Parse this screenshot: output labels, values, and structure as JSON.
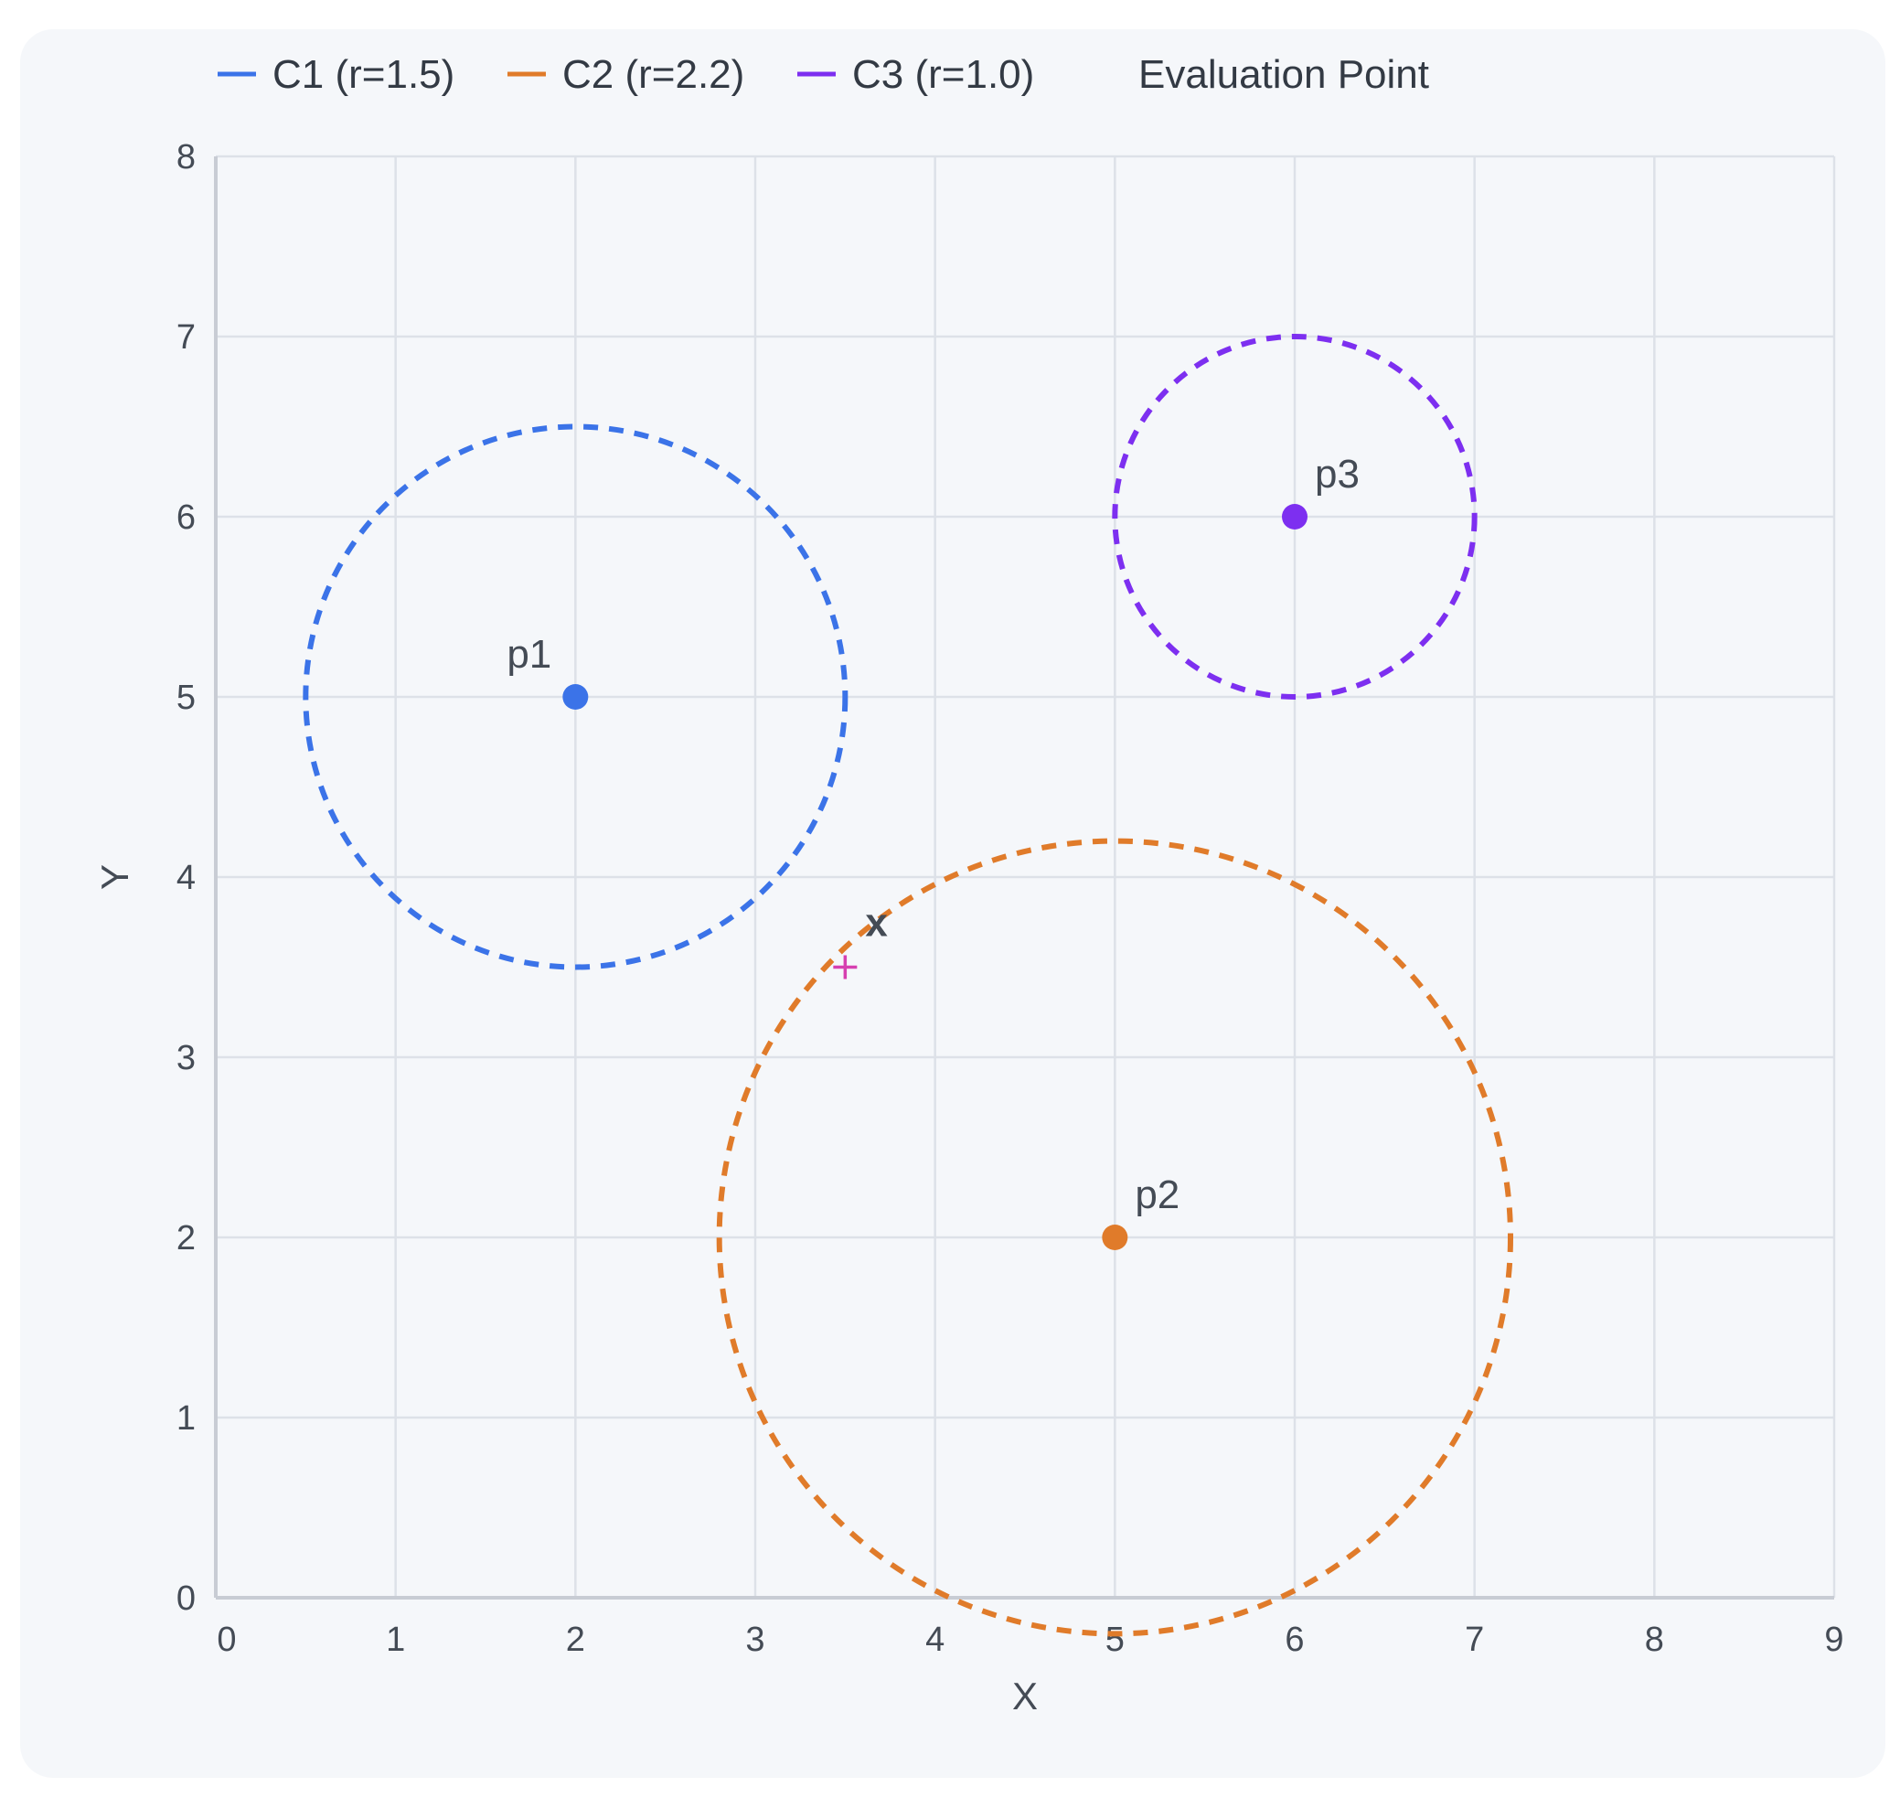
{
  "chart_data": {
    "type": "scatter",
    "xlabel": "X",
    "ylabel": "Y",
    "xlim": [
      0,
      9
    ],
    "ylim": [
      0,
      8
    ],
    "x_ticks": [
      "0",
      "1",
      "2",
      "3",
      "4",
      "5",
      "6",
      "7",
      "8",
      "9"
    ],
    "y_ticks": [
      "0",
      "1",
      "2",
      "3",
      "4",
      "5",
      "6",
      "7",
      "8"
    ],
    "grid": true,
    "legend_position": "top-left",
    "circles": [
      {
        "legend": "C1 (r=1.5)",
        "label": "p1",
        "center": [
          2,
          5
        ],
        "r": 1.5,
        "color": "#3b73e8",
        "label_side": "upper-left"
      },
      {
        "legend": "C2 (r=2.2)",
        "label": "p2",
        "center": [
          5,
          2
        ],
        "r": 2.2,
        "color": "#e07b2a",
        "label_side": "upper-right"
      },
      {
        "legend": "C3 (r=1.0)",
        "label": "p3",
        "center": [
          6,
          6
        ],
        "r": 1.0,
        "color": "#7d2ff0",
        "label_side": "upper-right"
      }
    ],
    "evaluation_point": {
      "legend": "Evaluation Point",
      "label": "x",
      "x": 3.5,
      "y": 3.5,
      "marker": "cross",
      "color": "#d63fb0"
    }
  }
}
